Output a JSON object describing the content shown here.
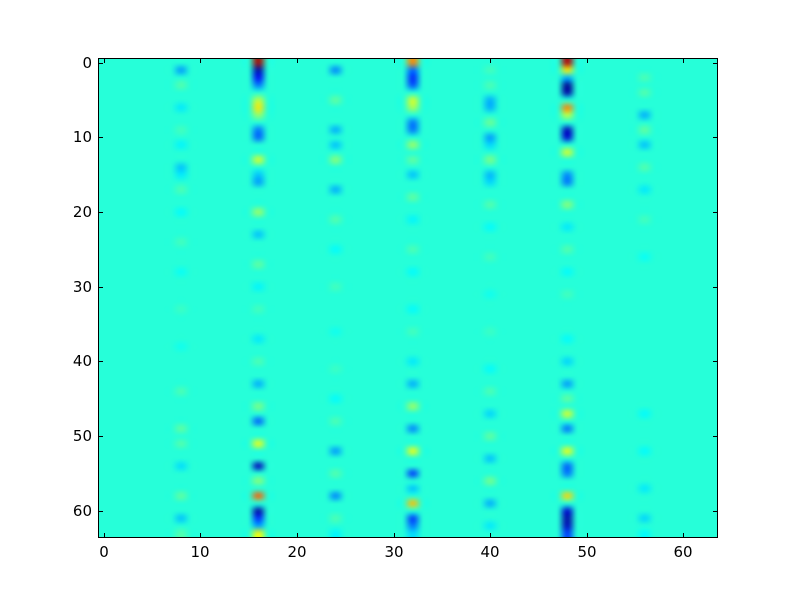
{
  "figure": {
    "colors": {
      "figure_bg": "#ffffff",
      "frame": "#000000",
      "heatmap_bg": "#22f8db"
    }
  },
  "chart_data": {
    "type": "heatmap",
    "grid": [
      64,
      64
    ],
    "x_range": [
      -0.5,
      63.5
    ],
    "y_range": [
      -0.5,
      63.5
    ],
    "y_inverted": true,
    "x_ticks": [
      0,
      10,
      20,
      30,
      40,
      50,
      60
    ],
    "y_ticks": [
      0,
      10,
      20,
      30,
      40,
      50,
      60
    ],
    "colormap": "jet",
    "vmin": -1.05,
    "vmax": 1.5,
    "background_value": 0,
    "legend": "none",
    "grid_lines": "off",
    "columns": {
      "8": [
        [
          1,
          -0.35
        ],
        [
          3,
          0.12
        ],
        [
          6,
          -0.15
        ],
        [
          9,
          0.08
        ],
        [
          11,
          -0.12
        ],
        [
          14,
          -0.25
        ],
        [
          15,
          -0.15
        ],
        [
          17,
          0.1
        ],
        [
          20,
          -0.1
        ],
        [
          24,
          0.08
        ],
        [
          28,
          -0.08
        ],
        [
          33,
          0.06
        ],
        [
          38,
          -0.06
        ],
        [
          44,
          0.1
        ],
        [
          49,
          0.15
        ],
        [
          51,
          0.12
        ],
        [
          54,
          -0.18
        ],
        [
          58,
          0.15
        ],
        [
          61,
          -0.25
        ],
        [
          63,
          0.12
        ]
      ],
      "16": [
        [
          0,
          1.4
        ],
        [
          1,
          -0.95
        ],
        [
          2,
          -0.75
        ],
        [
          3,
          -0.45
        ],
        [
          5,
          0.4
        ],
        [
          6,
          0.6
        ],
        [
          7,
          0.3
        ],
        [
          9,
          -0.45
        ],
        [
          10,
          -0.5
        ],
        [
          13,
          0.45
        ],
        [
          15,
          -0.25
        ],
        [
          16,
          -0.35
        ],
        [
          20,
          0.3
        ],
        [
          23,
          -0.25
        ],
        [
          27,
          0.15
        ],
        [
          30,
          -0.12
        ],
        [
          33,
          0.08
        ],
        [
          37,
          -0.15
        ],
        [
          40,
          0.1
        ],
        [
          43,
          -0.3
        ],
        [
          46,
          0.22
        ],
        [
          48,
          -0.5
        ],
        [
          51,
          0.5
        ],
        [
          54,
          -0.9
        ],
        [
          56,
          0.25
        ],
        [
          58,
          0.95
        ],
        [
          60,
          -0.95
        ],
        [
          61,
          -0.65
        ],
        [
          62,
          -0.35
        ],
        [
          63,
          0.55
        ]
      ],
      "24": [
        [
          1,
          -0.4
        ],
        [
          5,
          0.15
        ],
        [
          9,
          -0.3
        ],
        [
          11,
          -0.25
        ],
        [
          13,
          0.25
        ],
        [
          17,
          -0.3
        ],
        [
          21,
          0.12
        ],
        [
          25,
          -0.1
        ],
        [
          30,
          0.08
        ],
        [
          36,
          -0.06
        ],
        [
          41,
          0.06
        ],
        [
          45,
          -0.1
        ],
        [
          48,
          0.1
        ],
        [
          52,
          -0.35
        ],
        [
          55,
          0.12
        ],
        [
          58,
          -0.4
        ],
        [
          61,
          0.1
        ],
        [
          63,
          -0.12
        ]
      ],
      "32": [
        [
          0,
          0.85
        ],
        [
          1,
          -0.5
        ],
        [
          2,
          -0.65
        ],
        [
          3,
          -0.55
        ],
        [
          5,
          0.45
        ],
        [
          6,
          0.35
        ],
        [
          8,
          -0.45
        ],
        [
          9,
          -0.45
        ],
        [
          11,
          0.3
        ],
        [
          13,
          0.15
        ],
        [
          15,
          -0.25
        ],
        [
          18,
          0.15
        ],
        [
          21,
          -0.12
        ],
        [
          25,
          0.1
        ],
        [
          28,
          -0.1
        ],
        [
          33,
          -0.1
        ],
        [
          36,
          0.08
        ],
        [
          40,
          -0.15
        ],
        [
          43,
          -0.3
        ],
        [
          46,
          0.3
        ],
        [
          49,
          -0.4
        ],
        [
          52,
          0.5
        ],
        [
          55,
          -0.6
        ],
        [
          57,
          -0.25
        ],
        [
          59,
          0.7
        ],
        [
          61,
          -0.6
        ],
        [
          62,
          -0.45
        ],
        [
          63,
          -0.2
        ]
      ],
      "40": [
        [
          1,
          0.08
        ],
        [
          3,
          0.1
        ],
        [
          5,
          -0.3
        ],
        [
          6,
          -0.3
        ],
        [
          8,
          0.18
        ],
        [
          10,
          -0.35
        ],
        [
          11,
          -0.2
        ],
        [
          13,
          0.22
        ],
        [
          15,
          -0.28
        ],
        [
          16,
          -0.2
        ],
        [
          19,
          0.12
        ],
        [
          22,
          -0.1
        ],
        [
          26,
          0.08
        ],
        [
          31,
          -0.06
        ],
        [
          36,
          0.06
        ],
        [
          41,
          -0.1
        ],
        [
          44,
          0.1
        ],
        [
          47,
          -0.2
        ],
        [
          50,
          0.15
        ],
        [
          53,
          -0.25
        ],
        [
          56,
          0.2
        ],
        [
          59,
          -0.3
        ],
        [
          62,
          -0.15
        ]
      ],
      "48": [
        [
          0,
          1.35
        ],
        [
          1,
          0.6
        ],
        [
          2,
          -0.3
        ],
        [
          3,
          -1.0
        ],
        [
          4,
          -0.95
        ],
        [
          6,
          0.85
        ],
        [
          7,
          0.4
        ],
        [
          9,
          -0.9
        ],
        [
          10,
          -0.85
        ],
        [
          12,
          0.45
        ],
        [
          15,
          -0.4
        ],
        [
          16,
          -0.45
        ],
        [
          19,
          0.25
        ],
        [
          22,
          -0.15
        ],
        [
          25,
          0.12
        ],
        [
          28,
          -0.1
        ],
        [
          31,
          0.08
        ],
        [
          37,
          -0.1
        ],
        [
          40,
          -0.2
        ],
        [
          43,
          -0.35
        ],
        [
          45,
          0.15
        ],
        [
          47,
          0.45
        ],
        [
          49,
          -0.45
        ],
        [
          52,
          0.5
        ],
        [
          54,
          -0.5
        ],
        [
          55,
          -0.45
        ],
        [
          58,
          0.65
        ],
        [
          60,
          -0.85
        ],
        [
          61,
          -0.95
        ],
        [
          62,
          -0.9
        ],
        [
          63,
          -0.6
        ]
      ],
      "56": [
        [
          2,
          0.1
        ],
        [
          4,
          0.12
        ],
        [
          7,
          -0.3
        ],
        [
          9,
          0.15
        ],
        [
          11,
          -0.25
        ],
        [
          14,
          0.12
        ],
        [
          17,
          -0.15
        ],
        [
          21,
          0.08
        ],
        [
          26,
          -0.08
        ],
        [
          47,
          -0.1
        ],
        [
          52,
          -0.1
        ],
        [
          57,
          -0.15
        ],
        [
          61,
          -0.2
        ],
        [
          63,
          -0.1
        ]
      ]
    }
  }
}
